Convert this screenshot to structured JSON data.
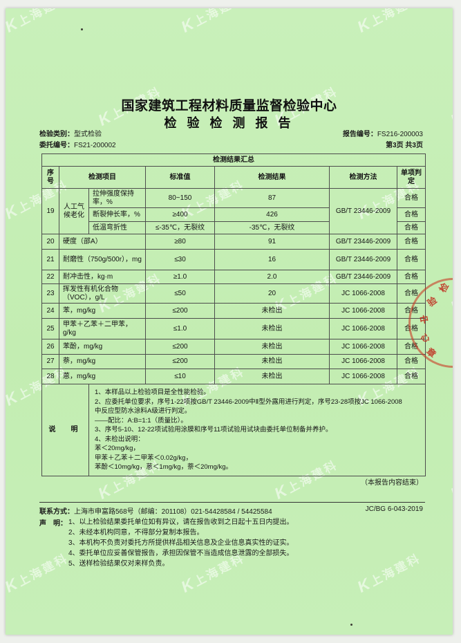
{
  "watermark": {
    "logo": "K",
    "text": "上海建科"
  },
  "header": {
    "title": "国家建筑工程材料质量监督检验中心",
    "subtitle": "检 验 检 测 报 告",
    "category_label": "检验类别：",
    "category_value": "型式检验",
    "commission_label": "委托编号：",
    "commission_value": "FS21-200002",
    "report_label": "报告编号：",
    "report_value": "FS216-200003",
    "page_info": "第3页 共3页"
  },
  "table": {
    "summary_title": "检测结果汇总",
    "columns": {
      "seq": "序号",
      "item": "检测项目",
      "standard": "标准值",
      "result": "检测结果",
      "method": "检测方法",
      "verdict": "单项判定"
    },
    "rows": [
      [
        {
          "t": "19",
          "r": 3,
          "n": "seq"
        },
        {
          "t": "人工气候老化",
          "r": 3,
          "n": "item-group"
        },
        {
          "t": "拉伸强度保持率，%",
          "n": "item"
        },
        {
          "t": "80~150",
          "n": "standard"
        },
        {
          "t": "87",
          "n": "result"
        },
        {
          "t": "GB/T 23446-2009",
          "r": 3,
          "n": "method"
        },
        {
          "t": "合格",
          "n": "verdict"
        }
      ],
      [
        {
          "t": "断裂伸长率，%",
          "n": "item"
        },
        {
          "t": "≥400",
          "n": "standard"
        },
        {
          "t": "426",
          "n": "result"
        },
        {
          "t": "合格",
          "n": "verdict"
        }
      ],
      [
        {
          "t": "低温弯折性",
          "n": "item"
        },
        {
          "t": "≤-35℃，无裂纹",
          "n": "standard"
        },
        {
          "t": "-35℃，无裂纹",
          "n": "result"
        },
        {
          "t": "合格",
          "n": "verdict"
        }
      ],
      [
        {
          "t": "20",
          "n": "seq"
        },
        {
          "t": "硬度（邵A）",
          "c": 2,
          "n": "item"
        },
        {
          "t": "≥80",
          "n": "standard"
        },
        {
          "t": "91",
          "n": "result"
        },
        {
          "t": "GB/T 23446-2009",
          "n": "method"
        },
        {
          "t": "合格",
          "n": "verdict"
        }
      ],
      [
        {
          "t": "21",
          "n": "seq"
        },
        {
          "t": "耐磨性（750g/500r），mg",
          "c": 2,
          "n": "item"
        },
        {
          "t": "≤30",
          "n": "standard"
        },
        {
          "t": "16",
          "n": "result"
        },
        {
          "t": "GB/T 23446-2009",
          "n": "method"
        },
        {
          "t": "合格",
          "n": "verdict"
        }
      ],
      [
        {
          "t": "22",
          "n": "seq"
        },
        {
          "t": "耐冲击性，kg·m",
          "c": 2,
          "n": "item"
        },
        {
          "t": "≥1.0",
          "n": "standard"
        },
        {
          "t": "2.0",
          "n": "result"
        },
        {
          "t": "GB/T 23446-2009",
          "n": "method"
        },
        {
          "t": "合格",
          "n": "verdict"
        }
      ],
      [
        {
          "t": "23",
          "n": "seq"
        },
        {
          "t": "挥发性有机化合物（VOC），g/L",
          "c": 2,
          "n": "item"
        },
        {
          "t": "≤50",
          "n": "standard"
        },
        {
          "t": "20",
          "n": "result"
        },
        {
          "t": "JC 1066-2008",
          "n": "method"
        },
        {
          "t": "合格",
          "n": "verdict"
        }
      ],
      [
        {
          "t": "24",
          "n": "seq"
        },
        {
          "t": "苯，mg/kg",
          "c": 2,
          "n": "item"
        },
        {
          "t": "≤200",
          "n": "standard"
        },
        {
          "t": "未检出",
          "n": "result"
        },
        {
          "t": "JC 1066-2008",
          "n": "method"
        },
        {
          "t": "合格",
          "n": "verdict"
        }
      ],
      [
        {
          "t": "25",
          "n": "seq"
        },
        {
          "t": "甲苯＋乙苯＋二甲苯，g/kg",
          "c": 2,
          "n": "item"
        },
        {
          "t": "≤1.0",
          "n": "standard"
        },
        {
          "t": "未检出",
          "n": "result"
        },
        {
          "t": "JC 1066-2008",
          "n": "method"
        },
        {
          "t": "合格",
          "n": "verdict"
        }
      ],
      [
        {
          "t": "26",
          "n": "seq"
        },
        {
          "t": "苯酚，mg/kg",
          "c": 2,
          "n": "item"
        },
        {
          "t": "≤200",
          "n": "standard"
        },
        {
          "t": "未检出",
          "n": "result"
        },
        {
          "t": "JC 1066-2008",
          "n": "method"
        },
        {
          "t": "合格",
          "n": "verdict"
        }
      ],
      [
        {
          "t": "27",
          "n": "seq"
        },
        {
          "t": "萘，mg/kg",
          "c": 2,
          "n": "item"
        },
        {
          "t": "≤200",
          "n": "standard"
        },
        {
          "t": "未检出",
          "n": "result"
        },
        {
          "t": "JC 1066-2008",
          "n": "method"
        },
        {
          "t": "合格",
          "n": "verdict"
        }
      ],
      [
        {
          "t": "28",
          "n": "seq"
        },
        {
          "t": "蒽，mg/kg",
          "c": 2,
          "n": "item"
        },
        {
          "t": "≤10",
          "n": "standard"
        },
        {
          "t": "未检出",
          "n": "result"
        },
        {
          "t": "JC 1066-2008",
          "n": "method"
        },
        {
          "t": "合格",
          "n": "verdict"
        }
      ]
    ],
    "note_label": "说　明",
    "note_lines": [
      "1、本样品以上检验项目是全性能检验。",
      "2、应委托单位要求，序号1-22项按GB/T 23446-2009中Ⅱ型外露用进行判定，序号23-28项按JC 1066-2008",
      "中反应型防水涂料A级进行判定。",
      "——配比：A:B=1:1（质量比）。",
      "3、序号5-10、12-22项试验用涂膜和序号11项试验用试块由委托单位制备并养护。",
      "4、未检出说明：",
      "苯＜20mg/kg，",
      "甲苯＋乙苯＋二甲苯＜0.02g/kg，",
      "苯酚＜10mg/kg，蒽＜1mg/kg，萘＜20mg/kg。"
    ]
  },
  "footer": {
    "end_note": "（本报告内容结束）",
    "contact_label": "联系方式：",
    "contact_value": "上海市申富路568号（邮编：201108）021-54428584 / 54425584",
    "doc_code": "JC/BG 6-043-2019",
    "declaration_label": "声　明：",
    "declarations": [
      "1、以上检验结果委托单位如有异议，请在报告收到之日起十五日内提出。",
      "2、未经本机构同意，不得部分复制本报告。",
      "3、本机构不负责对委托方所提供样品相关信息及企业信息真实性的证实。",
      "4、委托单位应妥善保管报告，承担因保管不当造成信息泄露的全部损失。",
      "5、送样检验结果仅对来样负责。"
    ]
  },
  "stamp": {
    "chars": [
      "检",
      "验",
      "中",
      "心",
      "章"
    ],
    "color": "#c02a1c"
  }
}
